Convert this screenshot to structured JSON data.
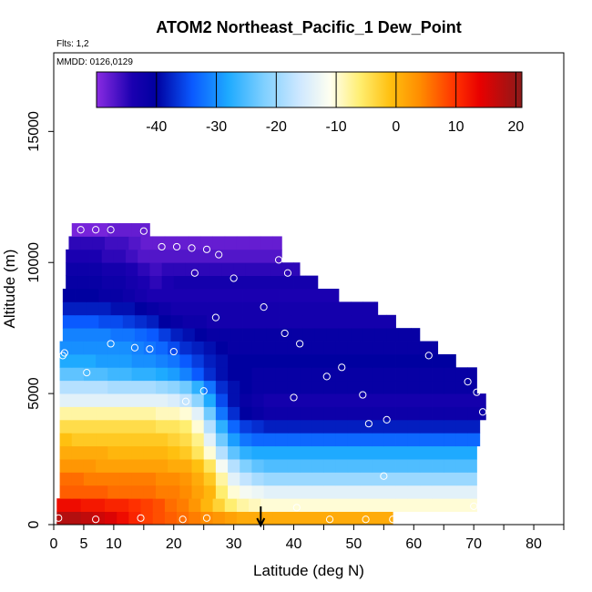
{
  "chart_data": {
    "type": "heatmap",
    "title": "ATOM2 Northeast_Pacific_1 Dew_Point",
    "annotations": {
      "flights": "Flts: 1,2",
      "dates": "MMDD: 0126,0129"
    },
    "xlabel": "Latitude (deg N)",
    "ylabel": "Altitude (m)",
    "xlim": [
      0,
      85
    ],
    "ylim": [
      0,
      18000
    ],
    "x_ticks": [
      0,
      5,
      10,
      20,
      30,
      40,
      50,
      60,
      70,
      80
    ],
    "x_tick_labels": [
      "0",
      "5",
      "10",
      "20",
      "30",
      "40",
      "50",
      "60",
      "70",
      "80"
    ],
    "y_ticks": [
      0,
      5000,
      10000,
      15000
    ],
    "y_tick_labels": [
      "0",
      "5000",
      "10000",
      "15000"
    ],
    "colorbar": {
      "range": [
        -50,
        21
      ],
      "ticks": [
        -40,
        -30,
        -20,
        -10,
        0,
        10,
        20
      ],
      "tick_labels": [
        "-40",
        "-30",
        "-20",
        "-10",
        "0",
        "10",
        "20"
      ],
      "stops": [
        {
          "v": -50,
          "c": "#8a2be2"
        },
        {
          "v": -44,
          "c": "#1a00b0"
        },
        {
          "v": -40,
          "c": "#0000a0"
        },
        {
          "v": -34,
          "c": "#0a5aff"
        },
        {
          "v": -28,
          "c": "#1eaaff"
        },
        {
          "v": -22,
          "c": "#80d0ff"
        },
        {
          "v": -16,
          "c": "#cfe8ff"
        },
        {
          "v": -11,
          "c": "#fffff0"
        },
        {
          "v": -6,
          "c": "#ffee70"
        },
        {
          "v": -1,
          "c": "#ffc010"
        },
        {
          "v": 4,
          "c": "#ff8c00"
        },
        {
          "v": 10,
          "c": "#ff3000"
        },
        {
          "v": 14,
          "c": "#e80000"
        },
        {
          "v": 21,
          "c": "#8b1a1a"
        }
      ]
    },
    "marker": {
      "type": "arrow",
      "latitude": 34.5
    },
    "grid": {
      "band_height_m": 500,
      "lat_step": 2,
      "bands": [
        {
          "alt": 0,
          "lat": [
            0.5,
            56.5
          ],
          "v": [
            18,
            18,
            17,
            16,
            15,
            13,
            11,
            9,
            8,
            7,
            6,
            5,
            4,
            3,
            2,
            1
          ]
        },
        {
          "alt": 500,
          "lat": [
            0.5,
            70.5
          ],
          "v": [
            13,
            13,
            12,
            12,
            11,
            11,
            10,
            9,
            8,
            6,
            5,
            3,
            0,
            -3,
            -6,
            -8,
            -9,
            -10
          ]
        },
        {
          "alt": 1000,
          "lat": [
            1,
            70.5
          ],
          "v": [
            7,
            7,
            7,
            7,
            6,
            6,
            6,
            6,
            5,
            5,
            4,
            2,
            0,
            -6,
            -10,
            -12,
            -13,
            -14
          ]
        },
        {
          "alt": 1500,
          "lat": [
            1,
            70.5
          ],
          "v": [
            6,
            6,
            5,
            5,
            5,
            5,
            5,
            5,
            4,
            4,
            3,
            1,
            -2,
            -8,
            -14,
            -17,
            -19,
            -20
          ]
        },
        {
          "alt": 2000,
          "lat": [
            1,
            70.5
          ],
          "v": [
            3,
            3,
            3,
            2,
            2,
            2,
            2,
            2,
            2,
            1,
            1,
            -1,
            -5,
            -12,
            -18,
            -22,
            -24,
            -25
          ]
        },
        {
          "alt": 2500,
          "lat": [
            1,
            70.5
          ],
          "v": [
            1,
            1,
            1,
            1,
            0,
            0,
            0,
            0,
            0,
            -1,
            -2,
            -5,
            -10,
            -18,
            -24,
            -27,
            -28,
            -28
          ]
        },
        {
          "alt": 3000,
          "lat": [
            1,
            71
          ],
          "v": [
            -1,
            -2,
            -2,
            -2,
            -2,
            -2,
            -2,
            -2,
            -2,
            -3,
            -4,
            -7,
            -14,
            -23,
            -29,
            -32,
            -33,
            -33
          ]
        },
        {
          "alt": 3500,
          "lat": [
            1,
            71
          ],
          "v": [
            -4,
            -4,
            -4,
            -4,
            -4,
            -4,
            -4,
            -4,
            -5,
            -5,
            -6,
            -10,
            -18,
            -27,
            -33,
            -36,
            -37,
            -38
          ]
        },
        {
          "alt": 4000,
          "lat": [
            1,
            72
          ],
          "v": [
            -8,
            -8,
            -8,
            -8,
            -8,
            -8,
            -8,
            -8,
            -9,
            -9,
            -10,
            -14,
            -23,
            -32,
            -37,
            -40,
            -41,
            -42
          ]
        },
        {
          "alt": 4500,
          "lat": [
            1,
            72
          ],
          "v": [
            -14,
            -14,
            -14,
            -14,
            -14,
            -14,
            -14,
            -14,
            -14,
            -15,
            -17,
            -21,
            -28,
            -35,
            -39,
            -41,
            -42,
            -43
          ]
        },
        {
          "alt": 5000,
          "lat": [
            1,
            70.5
          ],
          "v": [
            -18,
            -18,
            -18,
            -18,
            -19,
            -19,
            -19,
            -19,
            -20,
            -21,
            -23,
            -27,
            -32,
            -37,
            -39,
            -40,
            -41
          ]
        },
        {
          "alt": 5500,
          "lat": [
            1,
            70.5
          ],
          "v": [
            -24,
            -24,
            -25,
            -25,
            -26,
            -26,
            -27,
            -27,
            -28,
            -29,
            -31,
            -34,
            -37,
            -39,
            -40,
            -40,
            -41
          ]
        },
        {
          "alt": 6000,
          "lat": [
            1,
            67
          ],
          "v": [
            -28,
            -28,
            -28,
            -29,
            -29,
            -29,
            -30,
            -30,
            -31,
            -32,
            -34,
            -36,
            -38,
            -39,
            -40,
            -40
          ]
        },
        {
          "alt": 6500,
          "lat": [
            1,
            64
          ],
          "v": [
            -30,
            -30,
            -30,
            -30,
            -30,
            -30,
            -31,
            -32,
            -33,
            -35,
            -37,
            -38,
            -39,
            -40,
            -41
          ]
        },
        {
          "alt": 7000,
          "lat": [
            1.5,
            61
          ],
          "v": [
            -31,
            -31,
            -31,
            -31,
            -32,
            -32,
            -33,
            -34,
            -36,
            -38,
            -39,
            -40,
            -41,
            -41
          ]
        },
        {
          "alt": 7500,
          "lat": [
            1.5,
            57
          ],
          "v": [
            -34,
            -34,
            -34,
            -35,
            -35,
            -36,
            -37,
            -38,
            -40,
            -41,
            -42,
            -42,
            -43
          ]
        },
        {
          "alt": 8000,
          "lat": [
            1.5,
            54
          ],
          "v": [
            -38,
            -38,
            -38,
            -38,
            -39,
            -39,
            -40,
            -41,
            -42,
            -43,
            -43,
            -43
          ]
        },
        {
          "alt": 8500,
          "lat": [
            1.5,
            47.5
          ],
          "v": [
            -40,
            -40,
            -40,
            -41,
            -41,
            -42,
            -43,
            -44,
            -44,
            -44,
            -44
          ]
        },
        {
          "alt": 9000,
          "lat": [
            2,
            44
          ],
          "v": [
            -41,
            -41,
            -41,
            -42,
            -42,
            -43,
            -44,
            -45,
            -44,
            -43
          ]
        },
        {
          "alt": 9500,
          "lat": [
            2,
            41
          ],
          "v": [
            -42,
            -42,
            -42,
            -43,
            -43,
            -44,
            -45,
            -46,
            -45
          ]
        },
        {
          "alt": 10000,
          "lat": [
            2,
            38
          ],
          "v": [
            -44,
            -44,
            -44,
            -45,
            -45,
            -46,
            -47,
            -47
          ]
        },
        {
          "alt": 10500,
          "lat": [
            2.5,
            38
          ],
          "v": [
            -45,
            -45,
            -45,
            -46,
            -46,
            -47,
            -48,
            -48
          ]
        },
        {
          "alt": 11000,
          "lat": [
            3,
            16
          ],
          "v": [
            -49,
            -49,
            -49,
            -48,
            -48
          ]
        }
      ]
    },
    "sample_points": [
      {
        "lat": 0.8,
        "alt": 250
      },
      {
        "lat": 7,
        "alt": 200
      },
      {
        "lat": 14.5,
        "alt": 250
      },
      {
        "lat": 21.5,
        "alt": 200
      },
      {
        "lat": 25.5,
        "alt": 250
      },
      {
        "lat": 40.5,
        "alt": 650
      },
      {
        "lat": 46,
        "alt": 200
      },
      {
        "lat": 52,
        "alt": 200
      },
      {
        "lat": 56.5,
        "alt": 200
      },
      {
        "lat": 70,
        "alt": 700
      },
      {
        "lat": 55,
        "alt": 1850
      },
      {
        "lat": 52.5,
        "alt": 3850
      },
      {
        "lat": 55.5,
        "alt": 4000
      },
      {
        "lat": 71.5,
        "alt": 4300
      },
      {
        "lat": 51.5,
        "alt": 4950
      },
      {
        "lat": 70.5,
        "alt": 5050
      },
      {
        "lat": 69,
        "alt": 5450
      },
      {
        "lat": 48,
        "alt": 6000
      },
      {
        "lat": 45.5,
        "alt": 5650
      },
      {
        "lat": 62.5,
        "alt": 6450
      },
      {
        "lat": 40,
        "alt": 4850
      },
      {
        "lat": 25,
        "alt": 5100
      },
      {
        "lat": 22,
        "alt": 4700
      },
      {
        "lat": 5.5,
        "alt": 5800
      },
      {
        "lat": 1.5,
        "alt": 6450
      },
      {
        "lat": 1.8,
        "alt": 6550
      },
      {
        "lat": 9.5,
        "alt": 6900
      },
      {
        "lat": 13.5,
        "alt": 6750
      },
      {
        "lat": 16,
        "alt": 6700
      },
      {
        "lat": 20,
        "alt": 6600
      },
      {
        "lat": 27,
        "alt": 7900
      },
      {
        "lat": 38.5,
        "alt": 7300
      },
      {
        "lat": 41,
        "alt": 6900
      },
      {
        "lat": 35,
        "alt": 8300
      },
      {
        "lat": 30,
        "alt": 9400
      },
      {
        "lat": 23.5,
        "alt": 9600
      },
      {
        "lat": 39,
        "alt": 9600
      },
      {
        "lat": 37.5,
        "alt": 10100
      },
      {
        "lat": 27.5,
        "alt": 10300
      },
      {
        "lat": 25.5,
        "alt": 10500
      },
      {
        "lat": 23,
        "alt": 10550
      },
      {
        "lat": 20.5,
        "alt": 10600
      },
      {
        "lat": 18,
        "alt": 10600
      },
      {
        "lat": 15,
        "alt": 11200
      },
      {
        "lat": 4.5,
        "alt": 11250
      },
      {
        "lat": 7,
        "alt": 11250
      },
      {
        "lat": 9.5,
        "alt": 11250
      }
    ]
  }
}
